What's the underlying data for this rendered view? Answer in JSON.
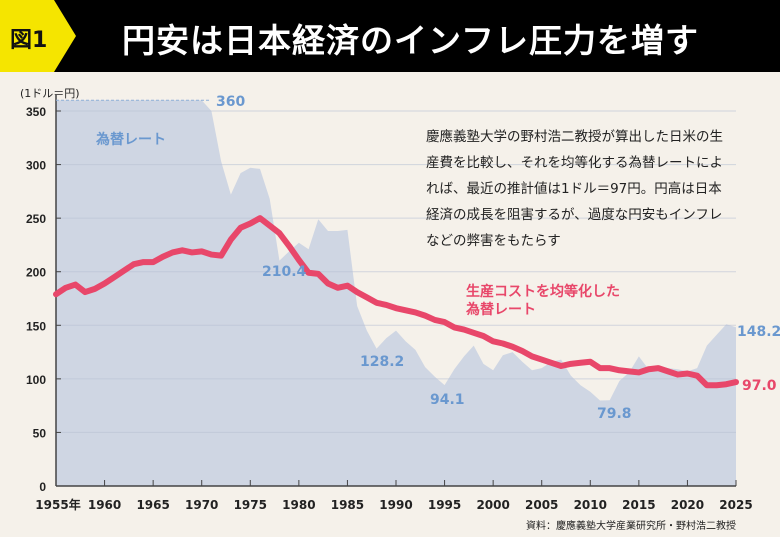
{
  "header": {
    "badge": "図1",
    "title": "円安は日本経済のインフレ圧力を増す"
  },
  "note": "慶應義塾大学の野村浩二教授が算出した日米の生産費を比較し、それを均等化する為替レートによれば、最近の推計値は1ドル＝97円。円高は日本経済の成長を阻害するが、過度な円安もインフレなどの弊害をもたらす",
  "source": "資料：慶應義塾大学産業研究所・野村浩二教授",
  "chart_data": {
    "type": "area+line",
    "ylabel": "(1ドル＝円)",
    "ylim": [
      0,
      370
    ],
    "yticks": [
      0,
      50,
      100,
      150,
      200,
      250,
      300,
      350
    ],
    "xlim": [
      1955,
      2025
    ],
    "xticks": [
      1955,
      1960,
      1965,
      1970,
      1975,
      1980,
      1985,
      1990,
      1995,
      2000,
      2005,
      2010,
      2015,
      2020,
      2025
    ],
    "xtick_labels": [
      "1955年",
      "1960",
      "1965",
      "1970",
      "1975",
      "1980",
      "1985",
      "1990",
      "1995",
      "2000",
      "2005",
      "2010",
      "2015",
      "2020",
      "2025"
    ],
    "grid": true,
    "colors": {
      "market": "#cfd6e3",
      "market_label": "#6a98cf",
      "ppp": "#e8476a"
    },
    "series": [
      {
        "name": "為替レート",
        "type": "area",
        "x": [
          1955,
          1956,
          1957,
          1958,
          1959,
          1960,
          1961,
          1962,
          1963,
          1964,
          1965,
          1966,
          1967,
          1968,
          1969,
          1970,
          1971,
          1972,
          1973,
          1974,
          1975,
          1976,
          1977,
          1978,
          1979,
          1980,
          1981,
          1982,
          1983,
          1984,
          1985,
          1986,
          1987,
          1988,
          1989,
          1990,
          1991,
          1992,
          1993,
          1994,
          1995,
          1996,
          1997,
          1998,
          1999,
          2000,
          2001,
          2002,
          2003,
          2004,
          2005,
          2006,
          2007,
          2008,
          2009,
          2010,
          2011,
          2012,
          2013,
          2014,
          2015,
          2016,
          2017,
          2018,
          2019,
          2020,
          2021,
          2022,
          2023,
          2024,
          2025
        ],
        "values": [
          360,
          360,
          360,
          360,
          360,
          360,
          360,
          360,
          360,
          360,
          360,
          360,
          360,
          360,
          360,
          360,
          350,
          303,
          272,
          292,
          297,
          296,
          268,
          210.4,
          219,
          227,
          221,
          249,
          238,
          238,
          239,
          168,
          145,
          128.2,
          138,
          145,
          135,
          127,
          111,
          102,
          94.1,
          109,
          121,
          131,
          114,
          108,
          122,
          125,
          116,
          108,
          110,
          116,
          118,
          103,
          94,
          88,
          79.8,
          80,
          98,
          106,
          121,
          109,
          112,
          110,
          109,
          107,
          110,
          131,
          141,
          151,
          148.2
        ]
      },
      {
        "name": "生産コストを均等化した為替レート",
        "type": "line",
        "x": [
          1955,
          1956,
          1957,
          1958,
          1959,
          1960,
          1961,
          1962,
          1963,
          1964,
          1965,
          1966,
          1967,
          1968,
          1969,
          1970,
          1971,
          1972,
          1973,
          1974,
          1975,
          1976,
          1977,
          1978,
          1979,
          1980,
          1981,
          1982,
          1983,
          1984,
          1985,
          1986,
          1987,
          1988,
          1989,
          1990,
          1991,
          1992,
          1993,
          1994,
          1995,
          1996,
          1997,
          1998,
          1999,
          2000,
          2001,
          2002,
          2003,
          2004,
          2005,
          2006,
          2007,
          2008,
          2009,
          2010,
          2011,
          2012,
          2013,
          2014,
          2015,
          2016,
          2017,
          2018,
          2019,
          2020,
          2021,
          2022,
          2023,
          2024,
          2025
        ],
        "values": [
          179,
          185,
          188,
          181,
          184,
          189,
          195,
          201,
          207,
          209,
          209,
          214,
          218,
          220,
          218,
          219,
          216,
          215,
          230,
          241,
          245,
          250,
          243,
          236,
          224,
          211,
          199,
          198,
          189,
          185,
          187,
          181,
          176,
          171,
          169,
          166,
          164,
          162,
          159,
          155,
          153,
          148,
          146,
          143,
          140,
          135,
          133,
          130,
          126,
          121,
          118,
          115,
          112,
          114,
          115,
          116,
          110,
          110,
          108,
          107,
          106,
          109,
          110,
          107,
          104,
          105,
          103,
          94,
          94,
          95,
          97.0
        ]
      }
    ],
    "annotations": [
      "360",
      "210.4",
      "128.2",
      "94.1",
      "79.8",
      "148.2",
      "97.0"
    ]
  }
}
